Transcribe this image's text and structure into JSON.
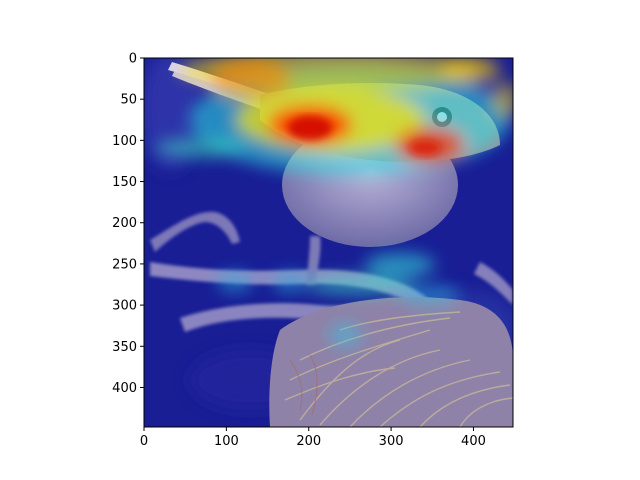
{
  "figure": {
    "type": "image-with-heatmap-overlay",
    "subject": "bird perched on branch near nest",
    "colormap": "jet",
    "overlay_alpha": 0.5,
    "x_ticks": [
      "0",
      "100",
      "200",
      "300",
      "400"
    ],
    "y_ticks": [
      "0",
      "50",
      "100",
      "150",
      "200",
      "250",
      "300",
      "350",
      "400"
    ],
    "x_range": [
      0,
      448
    ],
    "y_range": [
      0,
      448
    ],
    "colors": {
      "background_low": "#1a1a8c",
      "mid": "#2ee6e6",
      "high": "#ff1a00",
      "warm": "#ffe600"
    }
  }
}
